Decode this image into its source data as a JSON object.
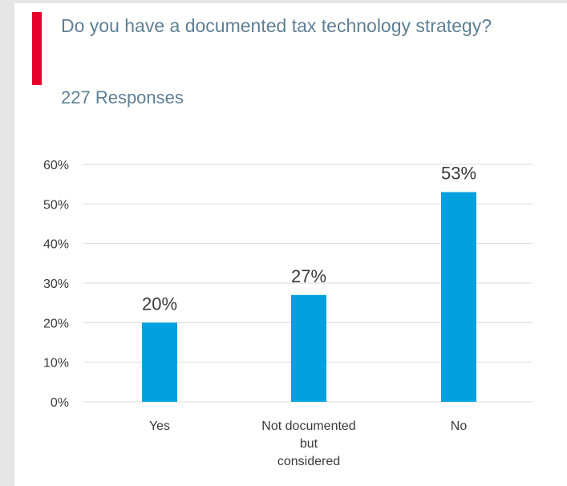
{
  "header": {
    "title": "Do you have a documented tax technology strategy?",
    "responses": "227 Responses"
  },
  "colors": {
    "accent": "#e4002b",
    "bar": "#00a1de",
    "grid": "#d9d9d9",
    "text": "#5f7f93"
  },
  "chart_data": {
    "type": "bar",
    "title": "Do you have a documented tax technology strategy?",
    "subtitle": "227 Responses",
    "categories": [
      [
        "Yes"
      ],
      [
        "Not documented",
        "but",
        "considered"
      ],
      [
        "No"
      ]
    ],
    "values": [
      20,
      27,
      53
    ],
    "data_labels": [
      "20%",
      "27%",
      "53%"
    ],
    "yticks": [
      "0%",
      "10%",
      "20%",
      "30%",
      "40%",
      "50%",
      "60%"
    ],
    "ylim": [
      0,
      60
    ],
    "grid": true,
    "legend": "none"
  }
}
